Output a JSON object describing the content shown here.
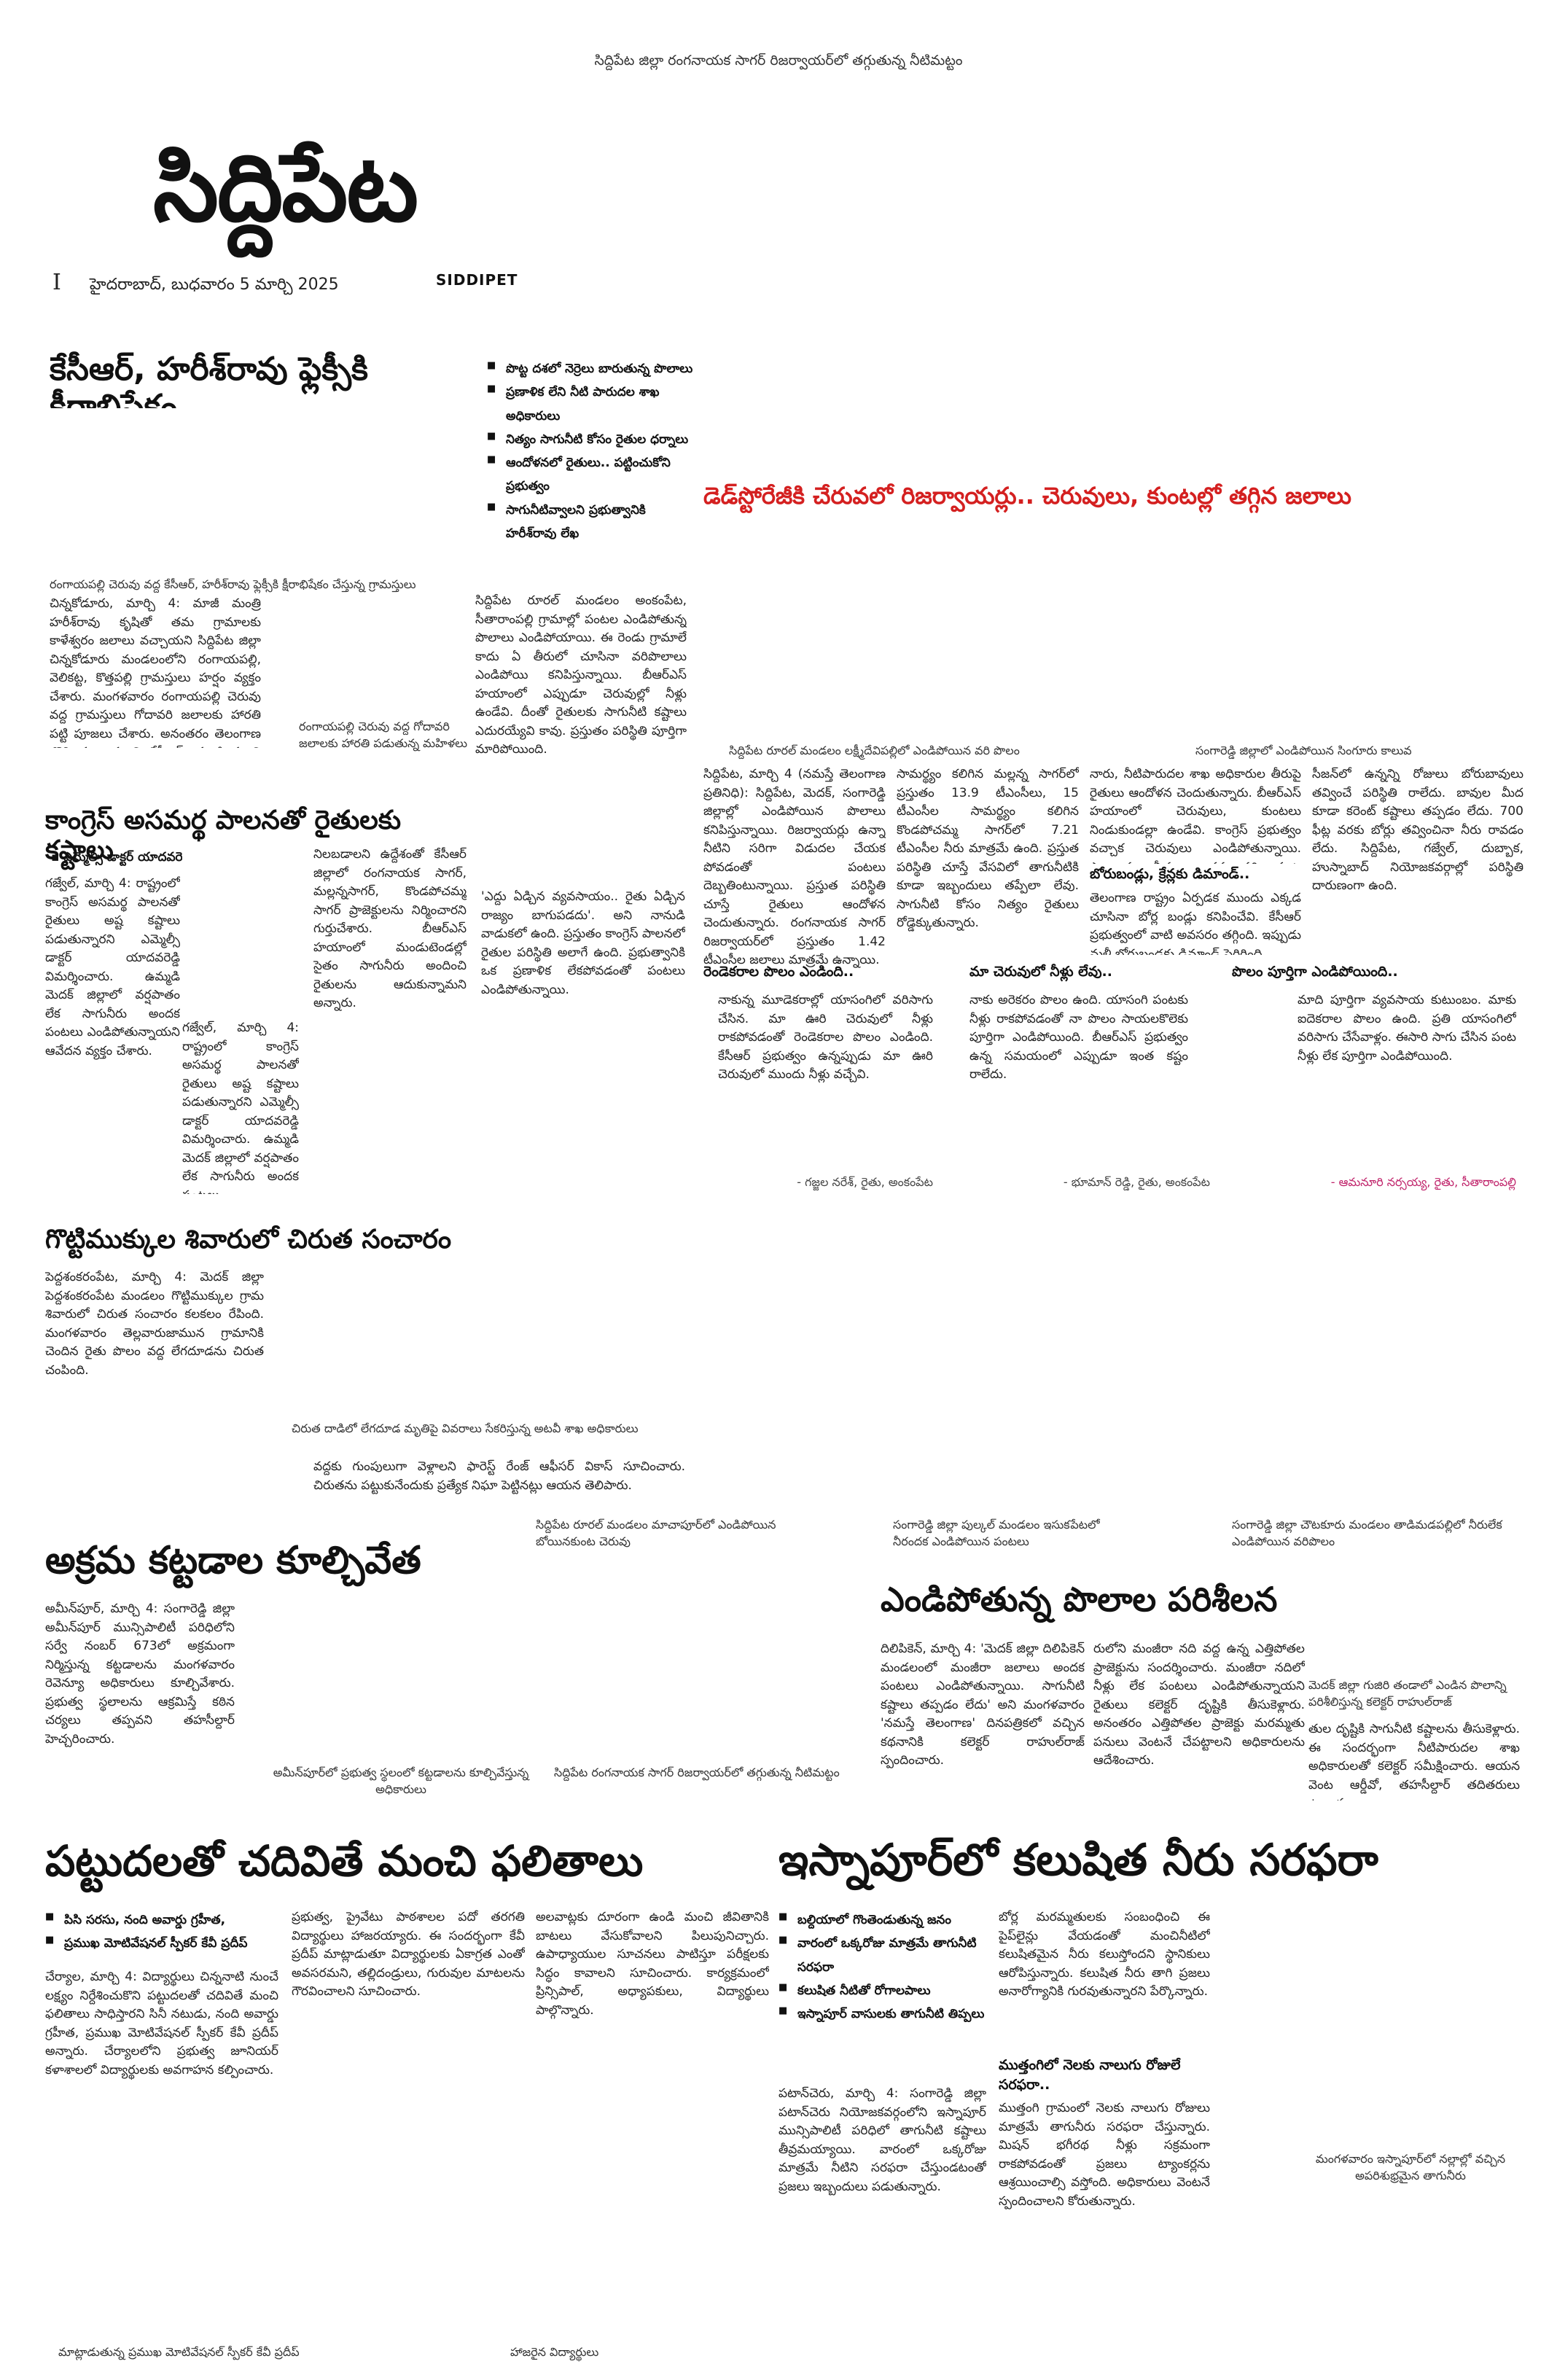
{
  "page": {
    "top_caption": "సిద్దిపేట జిల్లా రంగనాయక సాగర్ రిజర్వాయర్‌లో తగ్గుతున్న నీటిమట్టం",
    "masthead": "సిద్దిపేట",
    "page_no": "I",
    "dateline": "హైదరాబాద్, బుధవారం 5 మార్చి 2025",
    "brand": "SIDDIPET"
  },
  "story1": {
    "headline": "కేసీఆర్, హరీశ్‌రావు ఫ్లెక్సీకి క్షీరాభిషేకం",
    "caption": "రంగాయపల్లి చెరువు వద్ద కేసీఆర్, హరీశ్‌రావు ఫ్లెక్సీకి క్షీరాభిషేకం చేస్తున్న గ్రామస్తులు",
    "photo_caption": "రంగాయపల్లి చెరువు వద్ద గోదావరి జలాలకు హారతి పడుతున్న మహిళలు",
    "body": "చిన్నకోడూరు, మార్చి 4: మాజీ మంత్రి హరీశ్‌రావు కృషితో తమ గ్రామాలకు కాళేశ్వరం జలాలు వచ్చాయని సిద్దిపేట జిల్లా చిన్నకోడూరు మండలంలోని రంగాయపల్లి, వెలికట్ట, కొత్తపల్లి గ్రామస్తులు హర్షం వ్యక్తం చేశారు. మంగళవారం రంగాయపల్లి చెరువు వద్ద గ్రామస్తులు గోదావరి జలాలకు హారతి పట్టి పూజలు చేశారు. అనంతరం తెలంగాణ తొలి ముఖ్యమంత్రి కేసీఆర్, మాజీ మంత్రి హరీశ్‌రావు ఫ్లెక్సీకి క్షీరాభిషేకం చేశారు."
  },
  "bullets": [
    "పొట్ట దశలో నెర్రెలు బారుతున్న పొలాలు",
    "ప్రణాళిక లేని నీటి పారుదల శాఖ అధికారులు",
    "నిత్యం సాగునీటి కోసం రైతుల ధర్నాలు",
    "ఆందోళనలో రైతులు.. పట్టించుకోని ప్రభుత్వం",
    "సాగునీటివ్వాలని ప్రభుత్వానికి హరీశ్‌రావు లేఖ"
  ],
  "bullet_body": "సిద్దిపేట రూరల్ మండలం అంకంపేట, సీతారాంపల్లి గ్రామాల్లో పంటల ఎండిపోతున్న పొలాలు ఎండిపోయాయి. ఈ రెండు గ్రామాలే కాదు ఏ తీరులో చూసినా వరిపొలాలు ఎండిపోయి కనిపిస్తున్నాయి. బీఆర్‌ఎస్ హయాంలో ఎప్పుడూ చెరువుల్లో నీళ్లు ఉండేవి. దీంతో రైతులకు సాగునీటి కష్టాలు ఎదురయ్యేవి కావు. ప్రస్తుతం పరిస్థితి పూర్తిగా మారిపోయింది.",
  "red_headline": "డెడ్‌స్టోరేజీకి చేరువలో రిజర్వాయర్లు.. చెరువులు, కుంటల్లో తగ్గిన జలాలు",
  "main_story": {
    "photo1_caption": "సిద్దిపేట రూరల్ మండలం లక్ష్మీదేవిపల్లిలో ఎండిపోయిన వరి పొలం",
    "photo2_caption": "సంగారెడ్డి జిల్లాలో ఎండిపోయిన సింగూరు కాలువ",
    "col1": "సిద్దిపేట, మార్చి 4 (నమస్తే తెలంగాణ ప్రతినిధి): సిద్దిపేట, మెదక్, సంగారెడ్డి జిల్లాల్లో ఎండిపోయిన పొలాలు కనిపిస్తున్నాయి. రిజర్వాయర్లు ఉన్నా నీటిని సరిగా విడుదల చేయక పోవడంతో పంటలు దెబ్బతింటున్నాయి. ప్రస్తుత పరిస్థితి చూస్తే రైతులు ఆందోళన చెందుతున్నారు. రంగనాయక సాగర్ రిజర్వాయర్‌లో ప్రస్తుతం 1.42 టీఎంసీల జలాలు మాత్రమే ఉన్నాయి.",
    "col2": "సామర్థ్యం కలిగిన మల్లన్న సాగర్‌లో ప్రస్తుతం 13.9 టీఎంసీలు, 15 టీఎంసీల సామర్థ్యం కలిగిన కొండపోచమ్మ సాగర్‌లో 7.21 టీఎంసీల నీరు మాత్రమే ఉంది. ప్రస్తుత పరిస్థితి చూస్తే వేసవిలో తాగునీటికి కూడా ఇబ్బందులు తప్పేలా లేవు. సాగునీటి కోసం నిత్యం రైతులు రోడ్డెక్కుతున్నారు.",
    "col3": "నారు, నీటిపారుదల శాఖ అధికారుల తీరుపై రైతులు ఆందోళన చెందుతున్నారు. బీఆర్‌ఎస్ హయాంలో చెరువులు, కుంటలు నిండుకుండల్లా ఉండేవి. కాంగ్రెస్ ప్రభుత్వం వచ్చాక చెరువులు ఎండిపోతున్నాయి. పొలాలకు నీళ్లు అందక వరి పంట ఎండిపోతుంది.",
    "col4": "సీజన్‌లో ఉన్నన్ని రోజులు బోరుబావులు తవ్వించే పరిస్థితి రాలేదు. బావుల మీద కూడా కరెంట్ కష్టాలు తప్పడం లేదు. 700 ఫీట్ల వరకు బోర్లు తవ్వించినా నీరు రావడం లేదు. సిద్దిపేట, గజ్వేల్, దుబ్బాక, హుస్నాబాద్ నియోజకవర్గాల్లో పరిస్థితి దారుణంగా ఉంది.",
    "subhead": "బోరుబండ్లు, క్రేన్లకు డిమాండ్..",
    "subhead_body": "తెలంగాణ రాష్ట్రం ఏర్పడక ముందు ఎక్కడ చూసినా బోర్ల బండ్లు కనిపించేవి. కేసీఆర్ ప్రభుత్వంలో వాటి అవసరం తగ్గింది. ఇప్పుడు మళ్లీ బోరుబండ్లకు డిమాండ్ పెరిగింది."
  },
  "quotes": [
    {
      "title": "రెండెకరాల పొలం ఎండింది..",
      "body": "నాకున్న మూడెకరాల్లో యాసంగిలో వరిసాగు చేసిన. మా ఊరి చెరువులో నీళ్లు రాకపోవడంతో రెండెకరాల పొలం ఎండింది. కేసీఆర్ ప్రభుత్వం ఉన్నప్పుడు మా ఊరి చెరువులో ముందు నీళ్లు వచ్చేవి.",
      "attribution": "- గజ్జల నరేశ్, రైతు, అంకంపేట"
    },
    {
      "title": "మా చెరువులో నీళ్లు లేవు..",
      "body": "నాకు అరెకరం పొలం ఉంది. యాసంగి పంటకు నీళ్లు రాకపోవడంతో నా పొలం సాయలకొలెకు పూర్తిగా ఎండిపోయింది. బీఆర్‌ఎస్ ప్రభుత్వం ఉన్న సమయంలో ఎప్పుడూ ఇంత కష్టం రాలేదు.",
      "attribution": "- భూమాన్ రెడ్డి, రైతు, అంకంపేట"
    },
    {
      "title": "పొలం పూర్తిగా ఎండిపోయింది..",
      "body": "మాది పూర్తిగా వ్యవసాయ కుటుంబం. మాకు ఐదెకరాల పొలం ఉంది. ప్రతి యాసంగిలో వరిసాగు చేసేవాళ్లం. ఈసారి సాగు చేసిన పంట నీళ్లు లేక పూర్తిగా ఎండిపోయింది.",
      "attribution": "- ఆమనూరి నర్సయ్య, రైతు, సీతారాంపల్లి"
    }
  ],
  "story2": {
    "headline": "కాంగ్రెస్ అసమర్థ పాలనతో రైతులకు కష్టాలు",
    "byline": "ఎమ్మెల్సీ డాక్టర్ యాదవరెడ్డి",
    "col1": "గజ్వేల్, మార్చి 4: రాష్ట్రంలో కాంగ్రెస్ అసమర్థ పాలనతో రైతులు అష్ట కష్టాలు పడుతున్నారని ఎమ్మెల్సీ డాక్టర్ యాదవరెడ్డి విమర్శించారు. ఉమ్మడి మెదక్ జిల్లాలో వర్షపాతం లేక సాగునీరు అందక పంటలు ఎండిపోతున్నాయని ఆవేదన వ్యక్తం చేశారు.",
    "col2": "నిలబడాలని ఉద్దేశంతో కేసీఆర్ జిల్లాలో రంగనాయక సాగర్, మల్లన్నసాగర్, కొండపోచమ్మ సాగర్ ప్రాజెక్టులను నిర్మించారని గుర్తుచేశారు. బీఆర్‌ఎస్ హయాంలో మండుటెండల్లో సైతం సాగునీరు అందించి రైతులను ఆదుకున్నామని అన్నారు.",
    "col3": "'ఎద్దు ఏడ్చిన వ్యవసాయం.. రైతు ఏడ్చిన రాజ్యం బాగుపడదు'. అని నానుడి వాడుకలో ఉంది. ప్రస్తుతం కాంగ్రెస్ పాలనలో రైతుల పరిస్థితి అలాగే ఉంది. ప్రభుత్వానికి ఒక ప్రణాళిక లేకపోవడంతో పంటలు ఎండిపోతున్నాయి."
  },
  "story3": {
    "headline": "గొట్టిముక్కుల శివారులో చిరుత సంచారం",
    "col1": "పెద్దశంకరంపేట, మార్చి 4: మెదక్ జిల్లా పెద్దశంకరంపేట మండలం గొట్టిముక్కుల గ్రామ శివారులో చిరుత సంచారం కలకలం రేపింది. మంగళవారం తెల్లవారుజామున గ్రామానికి చెందిన రైతు పొలం వద్ద లేగదూడను చిరుత చంపింది.",
    "col2": "",
    "photo_caption": "చిరుత దాడిలో లేగదూడ మృతిపై వివరాలు సేకరిస్తున్న అటవీ శాఖ అధికారులు",
    "col2b": "వద్దకు గుంపులుగా వెళ్లాలని ఫారెస్ట్ రేంజ్ ఆఫీసర్ వికాస్ సూచించారు. చిరుతను పట్టుకునేందుకు ప్రత్యేక నిఘా పెట్టినట్లు ఆయన తెలిపారు."
  },
  "photo_row": {
    "cap1": "సిద్దిపేట రూరల్ మండలం మాచాపూర్‌లో ఎండిపోయిన బోయినకుంట చెరువు",
    "cap2": "సంగారెడ్డి జిల్లా పుల్కల్ మండలం ఇసుకపేటలో నీరందక ఎండిపోయిన పంటలు",
    "cap3": "సంగారెడ్డి జిల్లా చౌటకూరు మండలం తాడిమడపల్లిలో నీరులేక ఎండిపోయిన వరిపొలం"
  },
  "story4": {
    "headline": "అక్రమ కట్టడాల కూల్చివేత",
    "body": "అమీన్‌పూర్, మార్చి 4: సంగారెడ్డి జిల్లా అమీన్‌పూర్ మున్సిపాలిటీ పరిధిలోని సర్వే నంబర్ 673లో అక్రమంగా నిర్మిస్తున్న కట్టడాలను మంగళవారం రెవెన్యూ అధికారులు కూల్చివేశారు. ప్రభుత్వ స్థలాలను ఆక్రమిస్తే కఠిన చర్యలు తప్పవని తహసీల్దార్ హెచ్చరించారు.",
    "caption": "అమీన్‌పూర్‌లో ప్రభుత్వ స్థలంలో కట్టడాలను కూల్చివేస్తున్న అధికారులు"
  },
  "story5": {
    "headline": "ఎండిపోతున్న పొలాల పరిశీలన",
    "col1": "దిలిపికెన్, మార్చి 4: 'మెదక్ జిల్లా దిలిపికెన్ మండలంలో మంజీరా జలాలు అందక పంటలు ఎండిపోతున్నాయి. సాగునీటి కష్టాలు తప్పడం లేదు' అని మంగళవారం 'నమస్తే తెలంగాణ' దినపత్రికలో వచ్చిన కథనానికి కలెక్టర్ రాహుల్‌రాజ్ స్పందించారు.",
    "col2": "రులోని మంజీరా నది వద్ద ఉన్న ఎత్తిపోతల ప్రాజెక్టును సందర్శించారు. మంజీరా నదిలో నీళ్లు లేక పంటలు ఎండిపోతున్నాయని రైతులు కలెక్టర్ దృష్టికి తీసుకెళ్లారు. అనంతరం ఎత్తిపోతల ప్రాజెక్టు మరమ్మతు పనులు వెంటనే చేపట్టాలని అధికారులను ఆదేశించారు.",
    "photo_caption": "మెదక్ జిల్లా గుజిరి తండాలో ఎండిన పొలాన్ని పరిశీలిస్తున్న కలెక్టర్ రాహుల్‌రాజ్",
    "col3": "తుల దృష్టికి సాగునీటి కష్టాలను తీసుకెళ్లారు. ఈ సందర్భంగా నీటిపారుదల శాఖ అధికారులతో కలెక్టర్ సమీక్షించారు. ఆయన వెంట ఆర్డీవో, తహసీల్దార్ తదితరులు ఉన్నారు."
  },
  "story6": {
    "headline": "పట్టుదలతో చదివితే మంచి ఫలితాలు",
    "bullets": [
      "పిసి సరసు, నంది అవార్డు గ్రహీత,",
      "ప్రముఖ మోటివేషనల్ స్పీకర్ కేవీ ప్రదీప్"
    ],
    "col1": "చేర్యాల, మార్చి 4: విద్యార్థులు చిన్ననాటి నుంచే లక్ష్యం నిర్దేశించుకొని పట్టుదలతో చదివితే మంచి ఫలితాలు సాధిస్తారని సినీ నటుడు, నంది అవార్డు గ్రహీత, ప్రముఖ మోటివేషనల్ స్పీకర్ కేవీ ప్రదీప్ అన్నారు. చేర్యాలలోని ప్రభుత్వ జూనియర్ కళాశాలలో విద్యార్థులకు అవగాహన కల్పించారు.",
    "col2": "ప్రభుత్వ, ప్రైవేటు పాఠశాలల పదో తరగతి విద్యార్థులు హాజరయ్యారు. ఈ సందర్భంగా కేవీ ప్రదీప్ మాట్లాడుతూ విద్యార్థులకు ఏకాగ్రత ఎంతో అవసరమని, తల్లిదండ్రులు, గురువుల మాటలను గౌరవించాలని సూచించారు.",
    "col3": "అలవాట్లకు దూరంగా ఉండి మంచి జీవితానికి బాటలు వేసుకోవాలని పిలుపునిచ్చారు. ఉపాధ్యాయుల సూచనలు పాటిస్తూ పరీక్షలకు సిద్ధం కావాలని సూచించారు. కార్యక్రమంలో ప్రిన్సిపాల్, అధ్యాపకులు, విద్యార్థులు పాల్గొన్నారు.",
    "caption1": "మాట్లాడుతున్న ప్రముఖ మోటివేషనల్ స్పీకర్ కేవీ ప్రదీప్",
    "caption2": "హాజరైన విద్యార్థులు"
  },
  "story7": {
    "headline": "ఇస్నాపూర్‌లో కలుషిత నీరు సరఫరా",
    "bullets": [
      "బల్దియాలో గొంతెండుతున్న జనం",
      "వారంలో ఒక్కరోజు మాత్రమే తాగునీటి సరఫరా",
      "కలుషిత నీటితో రోగాలపాలు",
      "ఇస్నాపూర్ వాసులకు తాగునీటి తిప్పలు"
    ],
    "col1": "పటాన్‌చెరు, మార్చి 4: సంగారెడ్డి జిల్లా పటాన్‌చెరు నియోజకవర్గంలోని ఇస్నాపూర్ మున్సిపాలిటీ పరిధిలో తాగునీటి కష్టాలు తీవ్రమయ్యాయి. వారంలో ఒక్కరోజు మాత్రమే నీటిని సరఫరా చేస్తుండటంతో ప్రజలు ఇబ్బందులు పడుతున్నారు.",
    "col2": "బోర్ల మరమ్మతులకు సంబంధించి ఈ పైప్‌లైన్లు వేయడంతో మంచినీటిలో కలుషితమైన నీరు కలుస్తోందని స్థానికులు ఆరోపిస్తున్నారు. కలుషిత నీరు తాగి ప్రజలు అనారోగ్యానికి గురవుతున్నారని పేర్కొన్నారు.",
    "subhead": "ముత్తంగిలో నెలకు నాలుగు రోజులే సరఫరా..",
    "subhead_body": "ముత్తంగి గ్రామంలో నెలకు నాలుగు రోజులు మాత్రమే తాగునీరు సరఫరా చేస్తున్నారు. మిషన్ భగీరథ నీళ్లు సక్రమంగా రాకపోవడంతో ప్రజలు ట్యాంకర్లను ఆశ్రయించాల్సి వస్తోంది. అధికారులు వెంటనే స్పందించాలని కోరుతున్నారు.",
    "caption": "మంగళవారం ఇస్నాపూర్‌లో నల్లాల్లో వచ్చిన అపరిశుభ్రమైన తాగునీరు"
  },
  "bottom_caption": "సిద్దిపేట రంగనాయక సాగర్ రిజర్వాయర్‌లో తగ్గుతున్న నీటిమట్టం"
}
